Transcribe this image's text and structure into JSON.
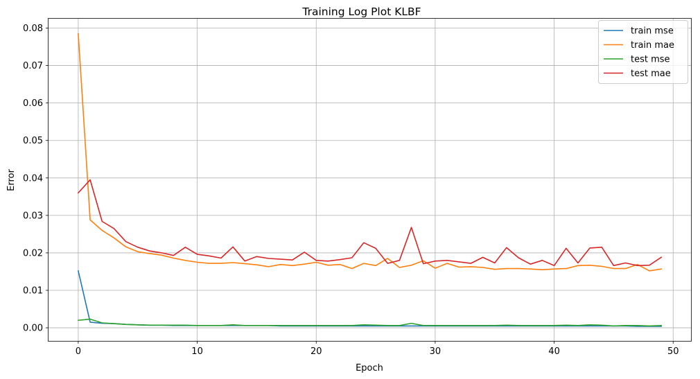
{
  "chart_data": {
    "type": "line",
    "title": "Training Log Plot KLBF",
    "xlabel": "Epoch",
    "ylabel": "Error",
    "xlim": [
      -2.5,
      51.5
    ],
    "ylim": [
      -0.0035,
      0.0825
    ],
    "xticks": [
      0,
      10,
      20,
      30,
      40,
      50
    ],
    "xtick_labels": [
      "0",
      "10",
      "20",
      "30",
      "40",
      "50"
    ],
    "yticks": [
      0.0,
      0.01,
      0.02,
      0.03,
      0.04,
      0.05,
      0.06,
      0.07,
      0.08
    ],
    "ytick_labels": [
      "0.00",
      "0.01",
      "0.02",
      "0.03",
      "0.04",
      "0.05",
      "0.06",
      "0.07",
      "0.08"
    ],
    "grid": true,
    "legend_position": "top-right",
    "x": [
      0,
      1,
      2,
      3,
      4,
      5,
      6,
      7,
      8,
      9,
      10,
      11,
      12,
      13,
      14,
      15,
      16,
      17,
      18,
      19,
      20,
      21,
      22,
      23,
      24,
      25,
      26,
      27,
      28,
      29,
      30,
      31,
      32,
      33,
      34,
      35,
      36,
      37,
      38,
      39,
      40,
      41,
      42,
      43,
      44,
      45,
      46,
      47,
      48,
      49
    ],
    "series": [
      {
        "name": "train mse",
        "color": "#1f77b4",
        "values": [
          0.0152,
          0.0015,
          0.0012,
          0.0011,
          0.0009,
          0.0008,
          0.0007,
          0.0007,
          0.0006,
          0.0006,
          0.0006,
          0.0006,
          0.0006,
          0.0006,
          0.0006,
          0.0006,
          0.0006,
          0.0005,
          0.0005,
          0.0005,
          0.0005,
          0.0005,
          0.0005,
          0.0005,
          0.0005,
          0.0005,
          0.0005,
          0.0005,
          0.0005,
          0.0005,
          0.0005,
          0.0005,
          0.0005,
          0.0005,
          0.0005,
          0.0005,
          0.0005,
          0.0005,
          0.0005,
          0.0005,
          0.0005,
          0.0005,
          0.0005,
          0.0005,
          0.0005,
          0.0005,
          0.0005,
          0.0004,
          0.0004,
          0.0004
        ]
      },
      {
        "name": "train mae",
        "color": "#ff7f0e",
        "values": [
          0.0785,
          0.0288,
          0.026,
          0.024,
          0.0216,
          0.0203,
          0.0198,
          0.0194,
          0.0186,
          0.018,
          0.0175,
          0.0172,
          0.0172,
          0.0174,
          0.0171,
          0.0168,
          0.0163,
          0.0169,
          0.0166,
          0.017,
          0.0175,
          0.0167,
          0.0169,
          0.0158,
          0.0172,
          0.0166,
          0.0185,
          0.0161,
          0.0167,
          0.0179,
          0.0159,
          0.0172,
          0.0162,
          0.0163,
          0.0161,
          0.0156,
          0.0158,
          0.0158,
          0.0157,
          0.0155,
          0.0157,
          0.0158,
          0.0166,
          0.0167,
          0.0164,
          0.0158,
          0.0158,
          0.0169,
          0.0152,
          0.0157
        ]
      },
      {
        "name": "test mse",
        "color": "#2ca02c",
        "values": [
          0.002,
          0.0023,
          0.0013,
          0.0011,
          0.0009,
          0.0008,
          0.0007,
          0.0007,
          0.0007,
          0.0007,
          0.0006,
          0.0006,
          0.0006,
          0.0008,
          0.0006,
          0.0006,
          0.0006,
          0.0006,
          0.0006,
          0.0006,
          0.0006,
          0.0006,
          0.0006,
          0.0006,
          0.0008,
          0.0007,
          0.0006,
          0.0006,
          0.0012,
          0.0006,
          0.0006,
          0.0006,
          0.0006,
          0.0006,
          0.0006,
          0.0006,
          0.0007,
          0.0006,
          0.0006,
          0.0006,
          0.0006,
          0.0007,
          0.0006,
          0.0008,
          0.0007,
          0.0005,
          0.0006,
          0.0006,
          0.0005,
          0.0006
        ]
      },
      {
        "name": "test mae",
        "color": "#d62728",
        "values": [
          0.036,
          0.0395,
          0.0284,
          0.0265,
          0.023,
          0.0215,
          0.0205,
          0.02,
          0.0193,
          0.0215,
          0.0196,
          0.0192,
          0.0186,
          0.0216,
          0.0178,
          0.019,
          0.0185,
          0.0183,
          0.0181,
          0.0202,
          0.018,
          0.0178,
          0.0182,
          0.0187,
          0.0227,
          0.0212,
          0.0172,
          0.018,
          0.0268,
          0.0171,
          0.0178,
          0.018,
          0.0176,
          0.0172,
          0.0188,
          0.0173,
          0.0214,
          0.0187,
          0.017,
          0.018,
          0.0166,
          0.0212,
          0.0173,
          0.0213,
          0.0215,
          0.0166,
          0.0173,
          0.0166,
          0.0167,
          0.0188
        ]
      }
    ]
  }
}
